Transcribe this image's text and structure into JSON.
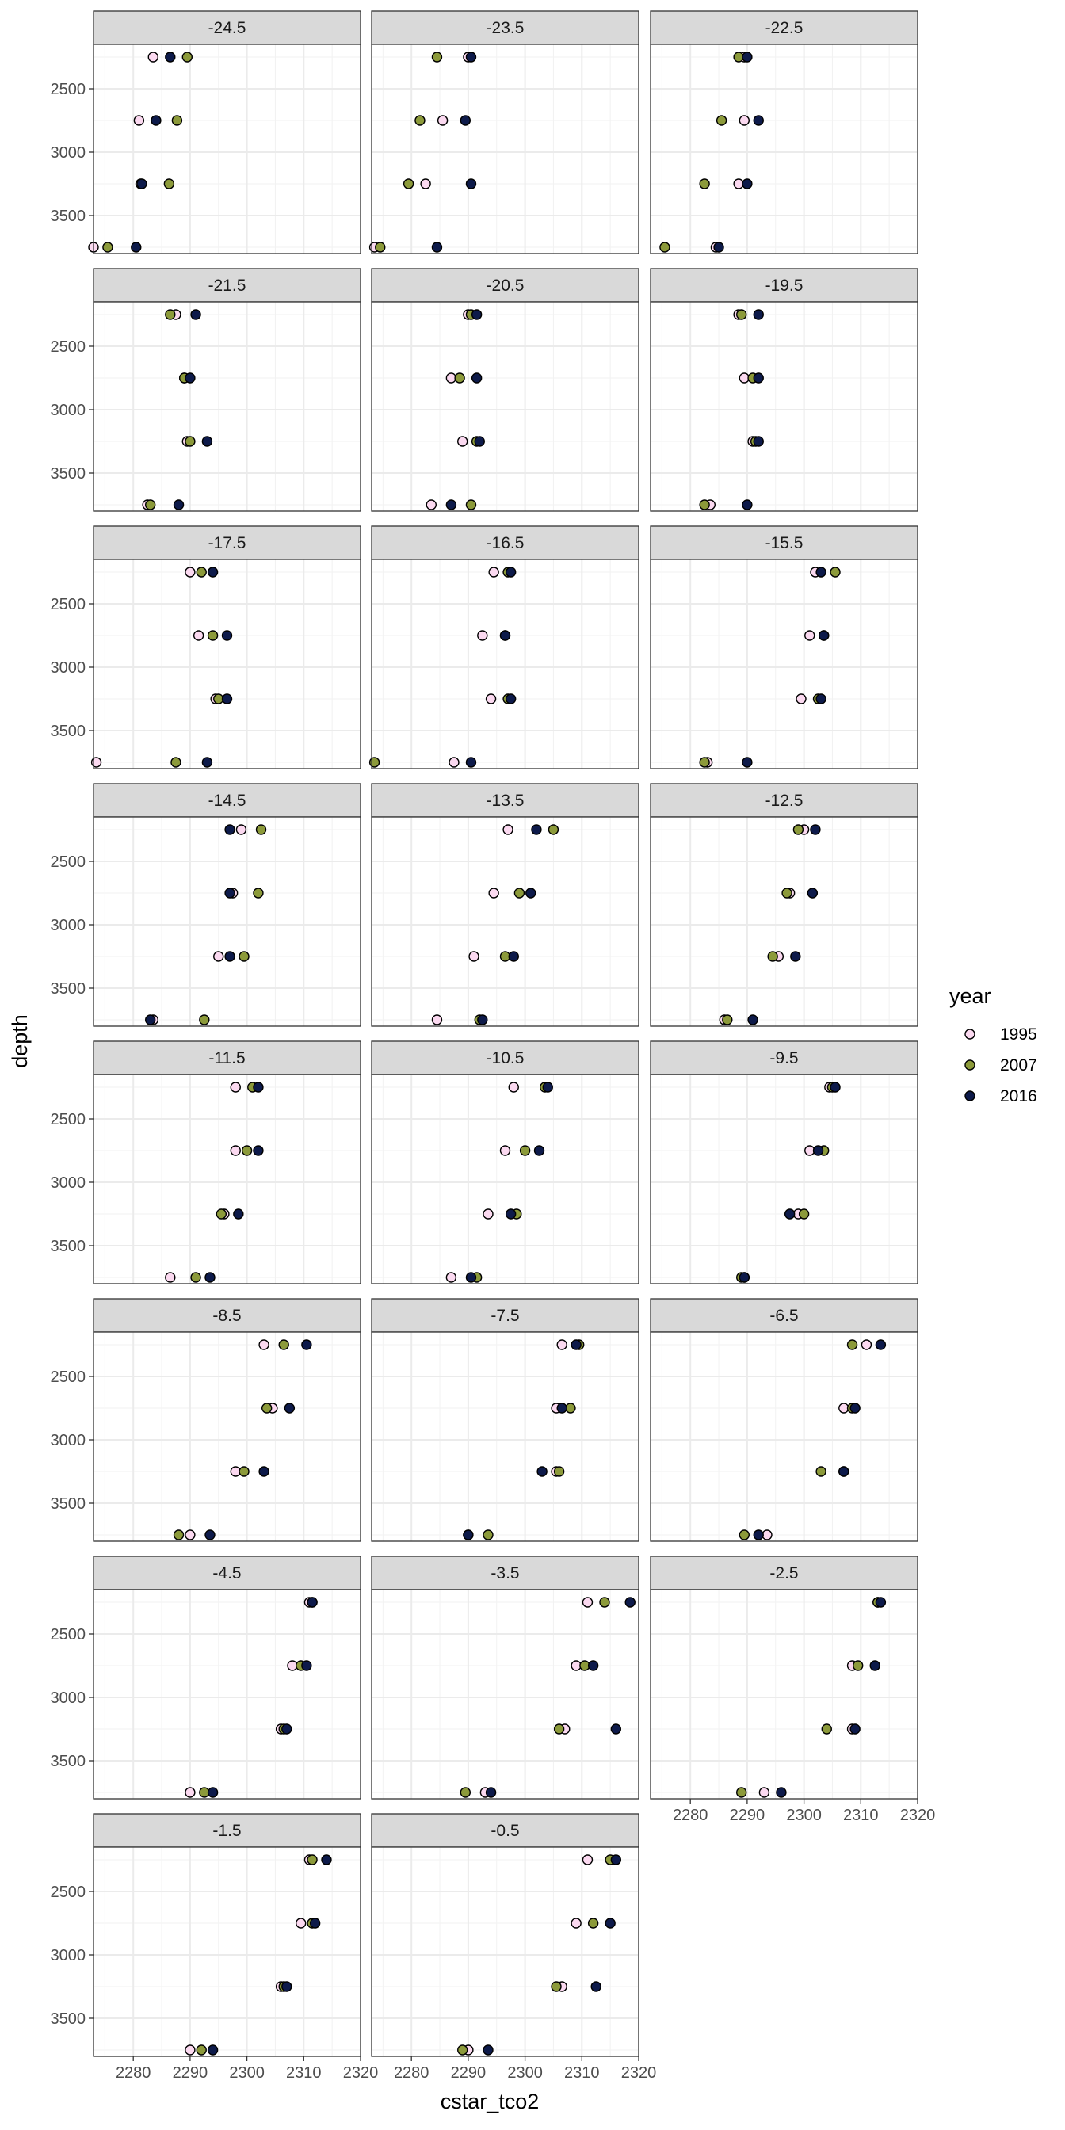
{
  "chart_data": {
    "type": "scatter",
    "facet_variable": "latitude",
    "xlabel": "cstar_tco2",
    "ylabel": "depth",
    "xlim": [
      2273,
      2320
    ],
    "ylim": [
      2150,
      3800
    ],
    "y_reversed": true,
    "x_ticks": [
      2280,
      2290,
      2300,
      2310,
      2320
    ],
    "y_ticks": [
      2500,
      3000,
      3500
    ],
    "grid": true,
    "legend": {
      "title": "year",
      "position": "right",
      "entries": [
        {
          "label": "1995",
          "color": "#fbd9f0"
        },
        {
          "label": "2007",
          "color": "#8c9a3a"
        },
        {
          "label": "2016",
          "color": "#0d1a4a"
        }
      ]
    },
    "depths": [
      2250,
      2750,
      3250,
      3750
    ],
    "series_names": [
      "1995",
      "2007",
      "2016"
    ],
    "panels": [
      {
        "label": "-24.5",
        "values": [
          [
            2283.5,
            2281.0,
            2281.3,
            2273.0
          ],
          [
            2289.5,
            2287.7,
            2286.3,
            2275.5
          ],
          [
            2286.5,
            2284.0,
            2281.5,
            2280.5
          ]
        ]
      },
      {
        "label": "-23.5",
        "values": [
          [
            2290.0,
            2285.5,
            2282.5,
            2273.5
          ],
          [
            2284.5,
            2281.5,
            2279.5,
            2274.5
          ],
          [
            2290.5,
            2289.5,
            2290.5,
            2284.5
          ]
        ]
      },
      {
        "label": "-22.5",
        "values": [
          [
            2289.5,
            2289.5,
            2288.5,
            2284.5
          ],
          [
            2288.5,
            2285.5,
            2282.5,
            2275.5
          ],
          [
            2290.0,
            2292.0,
            2290.0,
            2285.0
          ]
        ]
      },
      {
        "label": "-21.5",
        "values": [
          [
            2287.5,
            2289.0,
            2289.5,
            2282.5
          ],
          [
            2286.5,
            2289.0,
            2290.0,
            2283.0
          ],
          [
            2291.0,
            2290.0,
            2293.0,
            2288.0
          ]
        ]
      },
      {
        "label": "-20.5",
        "values": [
          [
            2290.0,
            2287.0,
            2289.0,
            2283.5
          ],
          [
            2290.5,
            2288.5,
            2291.5,
            2290.5
          ],
          [
            2291.5,
            2291.5,
            2292.0,
            2287.0
          ]
        ]
      },
      {
        "label": "-19.5",
        "values": [
          [
            2288.5,
            2289.5,
            2291.0,
            2283.5
          ],
          [
            2289.0,
            2291.0,
            2291.5,
            2282.5
          ],
          [
            2292.0,
            2292.0,
            2292.0,
            2290.0
          ]
        ]
      },
      {
        "label": "-17.5",
        "values": [
          [
            2290.0,
            2291.5,
            2294.5,
            2273.5
          ],
          [
            2292.0,
            2294.0,
            2295.0,
            2287.5
          ],
          [
            2294.0,
            2296.5,
            2296.5,
            2293.0
          ]
        ]
      },
      {
        "label": "-16.5",
        "values": [
          [
            2294.5,
            2292.5,
            2294.0,
            2287.5
          ],
          [
            2297.0,
            2296.5,
            2297.0,
            2273.5
          ],
          [
            2297.5,
            2296.5,
            2297.5,
            2290.5
          ]
        ]
      },
      {
        "label": "-15.5",
        "values": [
          [
            2302.0,
            2301.0,
            2299.5,
            2283.0
          ],
          [
            2305.5,
            2303.5,
            2302.5,
            2282.5
          ],
          [
            2303.0,
            2303.5,
            2303.0,
            2290.0
          ]
        ]
      },
      {
        "label": "-14.5",
        "values": [
          [
            2299.0,
            2297.5,
            2295.0,
            2283.5
          ],
          [
            2302.5,
            2302.0,
            2299.5,
            2292.5
          ],
          [
            2297.0,
            2297.0,
            2297.0,
            2283.0
          ]
        ]
      },
      {
        "label": "-13.5",
        "values": [
          [
            2297.0,
            2294.5,
            2291.0,
            2284.5
          ],
          [
            2305.0,
            2299.0,
            2296.5,
            2292.0
          ],
          [
            2302.0,
            2301.0,
            2298.0,
            2292.5
          ]
        ]
      },
      {
        "label": "-12.5",
        "values": [
          [
            2300.0,
            2297.5,
            2295.5,
            2286.0
          ],
          [
            2299.0,
            2297.0,
            2294.5,
            2286.5
          ],
          [
            2302.0,
            2301.5,
            2298.5,
            2291.0
          ]
        ]
      },
      {
        "label": "-11.5",
        "values": [
          [
            2298.0,
            2298.0,
            2296.0,
            2286.5
          ],
          [
            2301.0,
            2300.0,
            2295.5,
            2291.0
          ],
          [
            2302.0,
            2302.0,
            2298.5,
            2293.5
          ]
        ]
      },
      {
        "label": "-10.5",
        "values": [
          [
            2298.0,
            2296.5,
            2293.5,
            2287.0
          ],
          [
            2303.5,
            2300.0,
            2298.5,
            2291.5
          ],
          [
            2304.0,
            2302.5,
            2297.5,
            2290.5
          ]
        ]
      },
      {
        "label": "-9.5",
        "values": [
          [
            2304.5,
            2301.0,
            2299.0,
            2289.5
          ],
          [
            2305.0,
            2303.5,
            2300.0,
            2289.0
          ],
          [
            2305.5,
            2302.5,
            2297.5,
            2289.5
          ]
        ]
      },
      {
        "label": "-8.5",
        "values": [
          [
            2303.0,
            2304.5,
            2298.0,
            2290.0
          ],
          [
            2306.5,
            2303.5,
            2299.5,
            2288.0
          ],
          [
            2310.5,
            2307.5,
            2303.0,
            2293.5
          ]
        ]
      },
      {
        "label": "-7.5",
        "values": [
          [
            2306.5,
            2305.5,
            2305.5,
            2290.0
          ],
          [
            2309.5,
            2308.0,
            2306.0,
            2293.5
          ],
          [
            2309.0,
            2306.5,
            2303.0,
            2290.0
          ]
        ]
      },
      {
        "label": "-6.5",
        "values": [
          [
            2311.0,
            2307.0,
            2307.0,
            2293.5
          ],
          [
            2308.5,
            2308.5,
            2303.0,
            2289.5
          ],
          [
            2313.5,
            2309.0,
            2307.0,
            2292.0
          ]
        ]
      },
      {
        "label": "-4.5",
        "values": [
          [
            2311.0,
            2308.0,
            2306.0,
            2290.0
          ],
          [
            2311.5,
            2309.5,
            2306.5,
            2292.5
          ],
          [
            2311.5,
            2310.5,
            2307.0,
            2294.0
          ]
        ]
      },
      {
        "label": "-3.5",
        "values": [
          [
            2311.0,
            2309.0,
            2307.0,
            2293.0
          ],
          [
            2314.0,
            2310.5,
            2306.0,
            2289.5
          ],
          [
            2318.5,
            2312.0,
            2316.0,
            2294.0
          ]
        ]
      },
      {
        "label": "-2.5",
        "values": [
          [
            2313.0,
            2308.5,
            2308.5,
            2293.0
          ],
          [
            2313.0,
            2309.5,
            2304.0,
            2289.0
          ],
          [
            2313.5,
            2312.5,
            2309.0,
            2296.0
          ]
        ]
      },
      {
        "label": "-1.5",
        "values": [
          [
            2311.0,
            2309.5,
            2306.0,
            2290.0
          ],
          [
            2311.5,
            2311.5,
            2306.5,
            2292.0
          ],
          [
            2314.0,
            2312.0,
            2307.0,
            2294.0
          ]
        ]
      },
      {
        "label": "-0.5",
        "values": [
          [
            2311.0,
            2309.0,
            2306.5,
            2290.0
          ],
          [
            2315.0,
            2312.0,
            2305.5,
            2289.0
          ],
          [
            2316.0,
            2315.0,
            2312.5,
            2293.5
          ]
        ]
      }
    ]
  }
}
